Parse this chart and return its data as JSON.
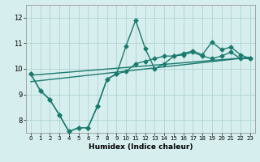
{
  "xlabel": "Humidex (Indice chaleur)",
  "bg_color": "#d7eeee",
  "grid_color": "#aed4d0",
  "line_color": "#1a7a6e",
  "xlim": [
    -0.5,
    23.5
  ],
  "ylim": [
    7.5,
    12.5
  ],
  "xticks": [
    0,
    1,
    2,
    3,
    4,
    5,
    6,
    7,
    8,
    9,
    10,
    11,
    12,
    13,
    14,
    15,
    16,
    17,
    18,
    19,
    20,
    21,
    22,
    23
  ],
  "yticks": [
    8,
    9,
    10,
    11,
    12
  ],
  "series_zigzag": {
    "x": [
      0,
      1,
      2,
      3,
      4,
      5,
      6,
      7,
      8,
      9,
      10,
      11,
      12,
      13,
      14,
      15,
      16,
      17,
      18,
      19,
      20,
      21,
      22,
      23
    ],
    "y": [
      9.8,
      9.15,
      8.8,
      8.2,
      7.55,
      7.7,
      7.7,
      8.55,
      9.6,
      9.8,
      10.9,
      11.9,
      10.8,
      10.0,
      10.2,
      10.5,
      10.6,
      10.7,
      10.55,
      11.05,
      10.75,
      10.85,
      10.55,
      10.4
    ]
  },
  "series_smooth": {
    "x": [
      0,
      1,
      2,
      3,
      4,
      5,
      6,
      7,
      8,
      9,
      10,
      11,
      12,
      13,
      14,
      15,
      16,
      17,
      18,
      19,
      20,
      21,
      22,
      23
    ],
    "y": [
      9.8,
      9.15,
      8.8,
      8.2,
      7.55,
      7.7,
      7.7,
      8.55,
      9.6,
      9.8,
      9.9,
      10.2,
      10.3,
      10.4,
      10.5,
      10.5,
      10.55,
      10.65,
      10.5,
      10.4,
      10.5,
      10.65,
      10.4,
      10.4
    ]
  },
  "series_line1": {
    "x": [
      0,
      23
    ],
    "y": [
      9.5,
      10.45
    ]
  },
  "series_line2": {
    "x": [
      0,
      23
    ],
    "y": [
      9.75,
      10.45
    ]
  },
  "markersize": 2.5,
  "linewidth": 1.0
}
